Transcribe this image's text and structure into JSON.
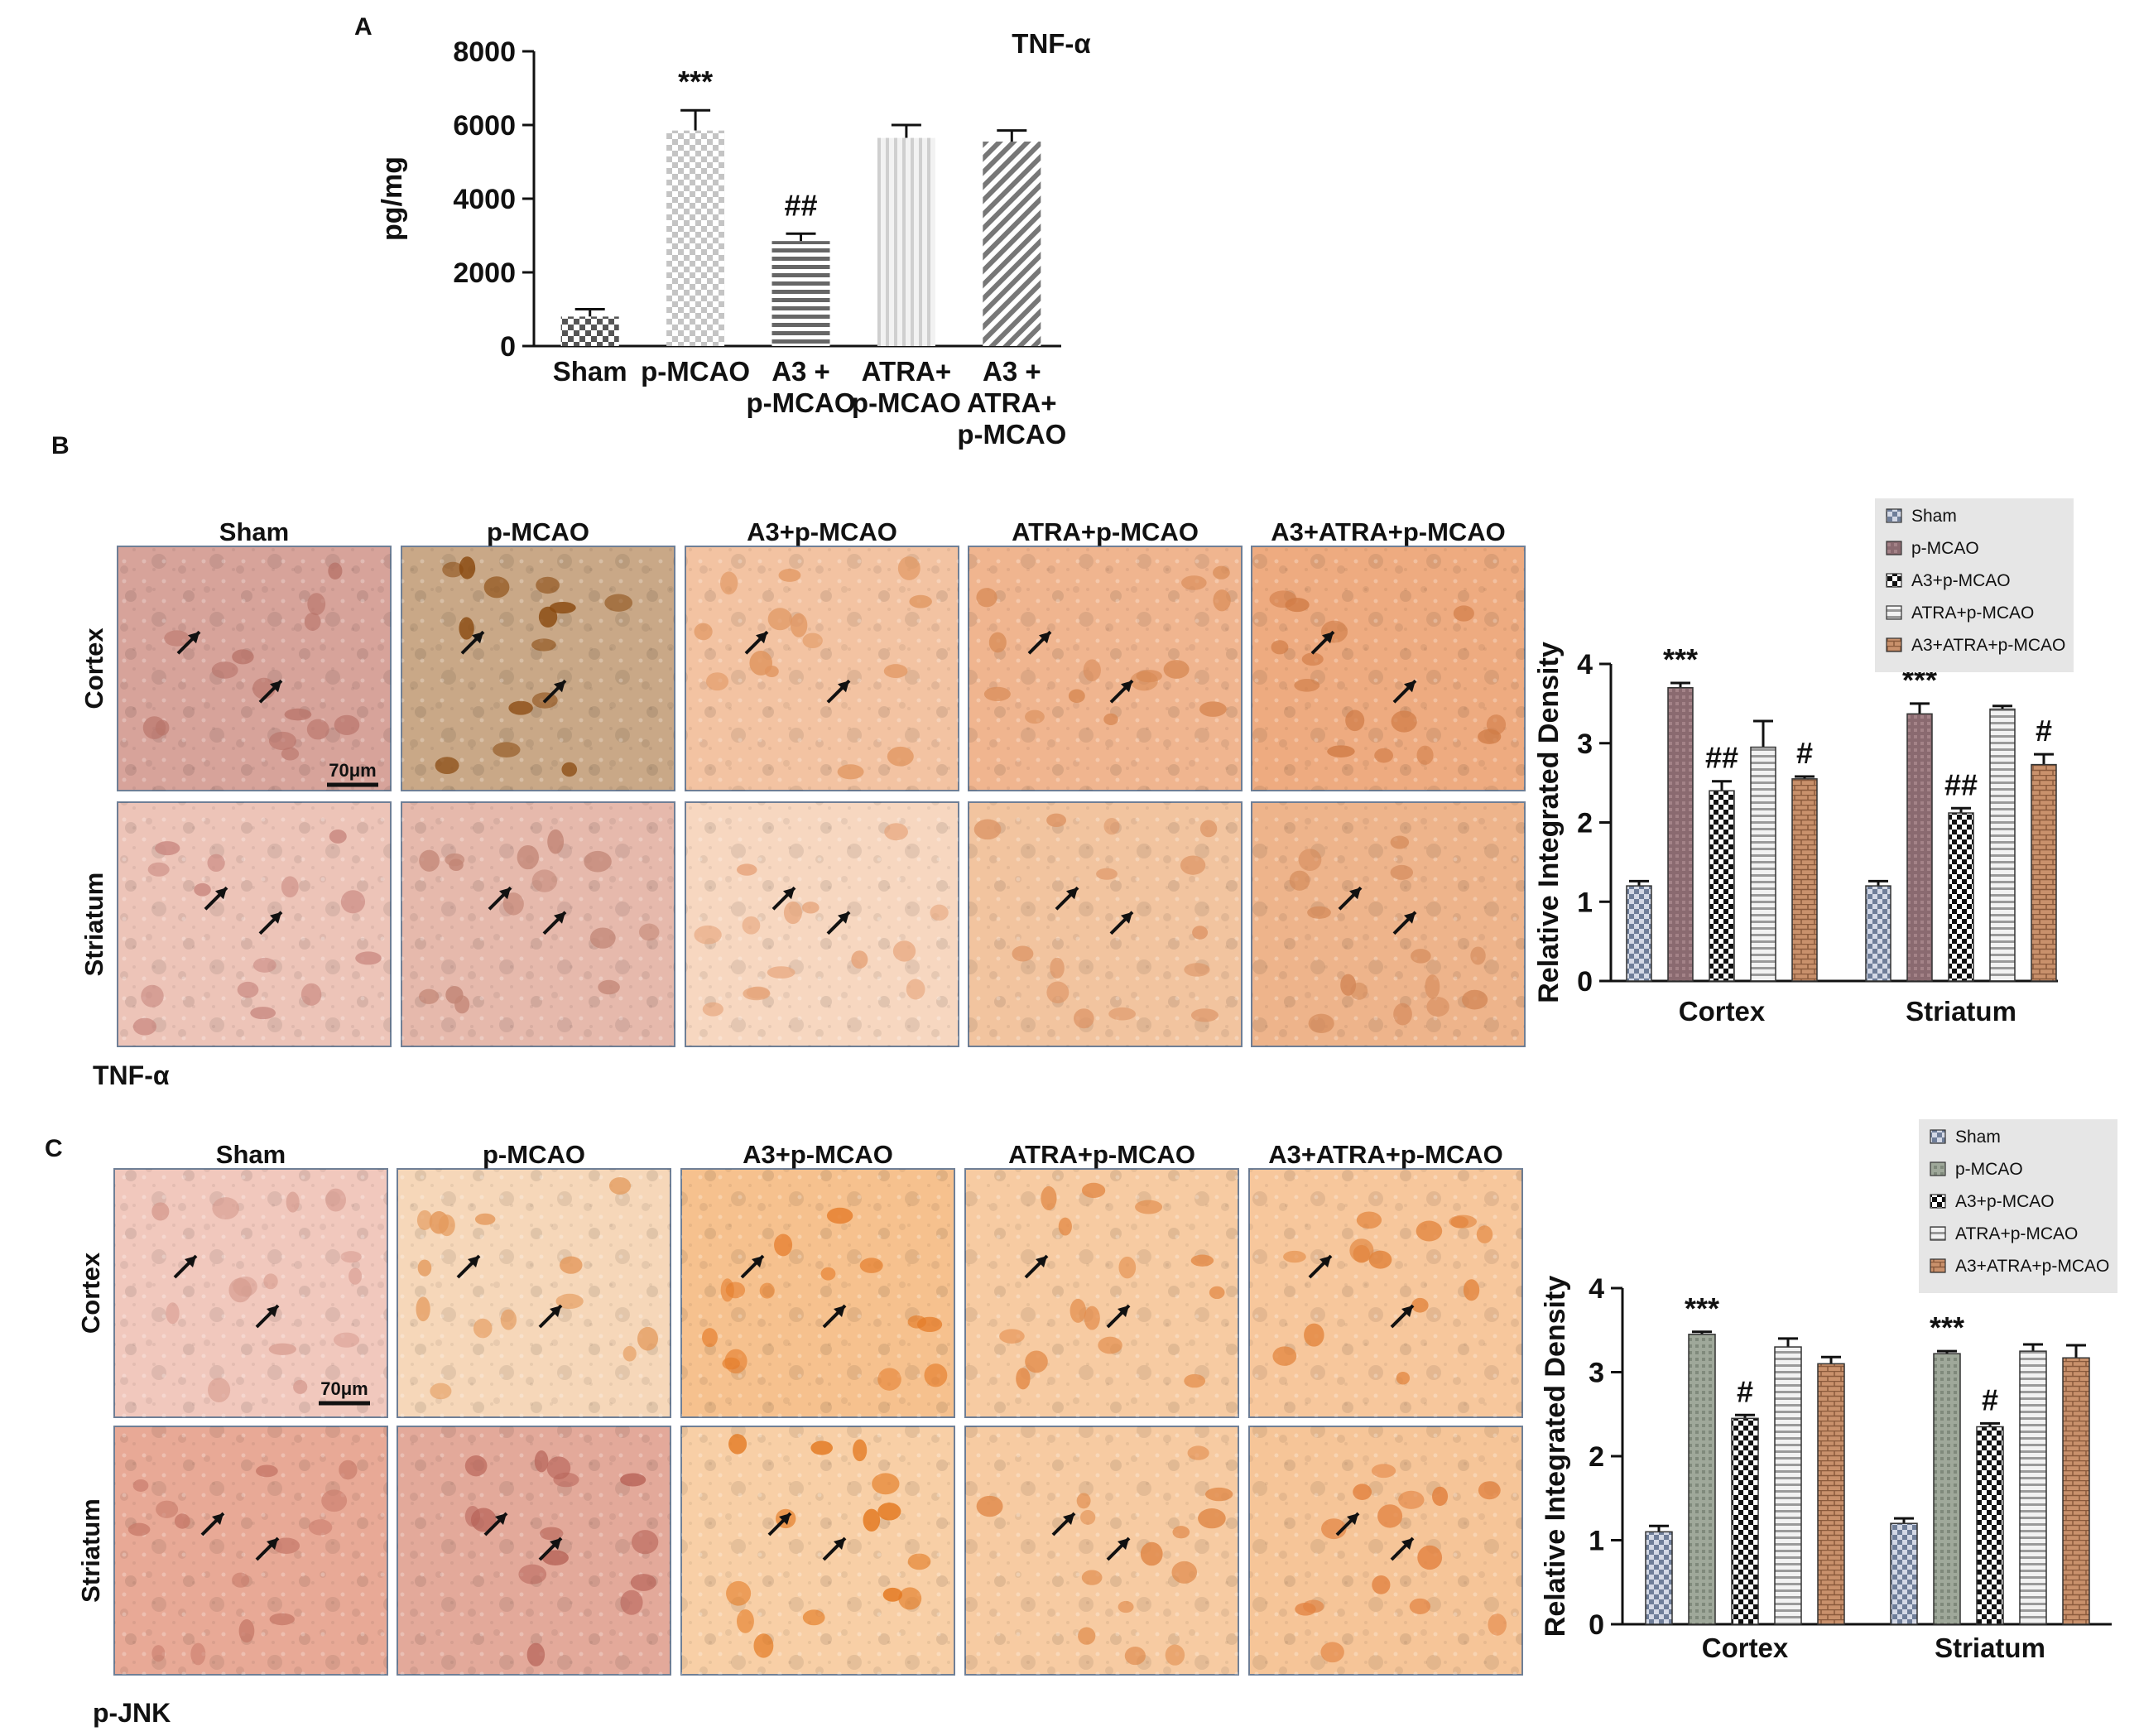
{
  "figure": {
    "panel_a_letter": "A",
    "panel_b_letter": "B",
    "panel_c_letter": "C",
    "panel_b_marker": "TNF-α",
    "panel_c_marker": "p-JNK",
    "scale_bar_b": "70μm",
    "scale_bar_c": "70μm",
    "micrograph_columns": [
      "Sham",
      "p-MCAO",
      "A3+p-MCAO",
      "ATRA+p-MCAO",
      "A3+ATRA+p-MCAO"
    ],
    "micrograph_rows": [
      "Cortex",
      "Striatum"
    ]
  },
  "colors": {
    "axis": "#111111",
    "stain_light": "#f3c9a6",
    "stain_mid": "#e8a070",
    "stain_dark": "#b8641c",
    "stain_pink": "#e9b0a6",
    "legend_bg": "#e6e6e6",
    "frame": "#6f7f96"
  },
  "chart_data": [
    {
      "id": "A",
      "type": "bar",
      "title": "TNF-α",
      "ylabel": "pg/mg",
      "xlabel": "",
      "ylim": [
        0,
        8000
      ],
      "yticks": [
        "0",
        "2000",
        "4000",
        "6000",
        "8000"
      ],
      "categories": [
        [
          "Sham"
        ],
        [
          "p-MCAO"
        ],
        [
          "A3 +",
          "p-MCAO"
        ],
        [
          "ATRA+",
          "p-MCAO"
        ],
        [
          "A3 +",
          "ATRA+",
          "p-MCAO"
        ]
      ],
      "values": [
        800,
        5850,
        2850,
        5650,
        5550
      ],
      "errors": [
        200,
        550,
        200,
        350,
        300
      ],
      "significance": [
        "",
        "***",
        "##",
        "",
        ""
      ],
      "patterns": [
        "checker",
        "checker-light",
        "hlines",
        "vlines",
        "diag"
      ]
    },
    {
      "id": "B",
      "type": "bar",
      "title": "",
      "ylabel": "Relative Integrated Density",
      "xlabel": "",
      "ylim": [
        0,
        4
      ],
      "yticks": [
        "0",
        "1",
        "2",
        "3",
        "4"
      ],
      "categories": [
        "Cortex",
        "Striatum"
      ],
      "legend": [
        "Sham",
        "p-MCAO",
        "A3+p-MCAO",
        "ATRA+p-MCAO",
        "A3+ATRA+p-MCAO"
      ],
      "legend_position": "top-right",
      "series": [
        {
          "name": "Sham",
          "values": [
            1.2,
            1.2
          ],
          "errors": [
            0.06,
            0.06
          ],
          "significance": [
            "",
            ""
          ]
        },
        {
          "name": "p-MCAO",
          "values": [
            3.7,
            3.37
          ],
          "errors": [
            0.06,
            0.13
          ],
          "significance": [
            "***",
            "***"
          ]
        },
        {
          "name": "A3+p-MCAO",
          "values": [
            2.4,
            2.12
          ],
          "errors": [
            0.12,
            0.06
          ],
          "significance": [
            "##",
            "##"
          ]
        },
        {
          "name": "ATRA+p-MCAO",
          "values": [
            2.95,
            3.43
          ],
          "errors": [
            0.33,
            0.04
          ],
          "significance": [
            "",
            ""
          ]
        },
        {
          "name": "A3+ATRA+p-MCAO",
          "values": [
            2.55,
            2.73
          ],
          "errors": [
            0.03,
            0.13
          ],
          "significance": [
            "#",
            "#"
          ]
        }
      ]
    },
    {
      "id": "C",
      "type": "bar",
      "title": "",
      "ylabel": "Relative Integrated Density",
      "xlabel": "",
      "ylim": [
        0,
        4
      ],
      "yticks": [
        "0",
        "1",
        "2",
        "3",
        "4"
      ],
      "categories": [
        "Cortex",
        "Striatum"
      ],
      "legend": [
        "Sham",
        "p-MCAO",
        "A3+p-MCAO",
        "ATRA+p-MCAO",
        "A3+ATRA+p-MCAO"
      ],
      "legend_position": "top-right",
      "series": [
        {
          "name": "Sham",
          "values": [
            1.1,
            1.2
          ],
          "errors": [
            0.07,
            0.06
          ],
          "significance": [
            "",
            ""
          ]
        },
        {
          "name": "p-MCAO",
          "values": [
            3.45,
            3.22
          ],
          "errors": [
            0.03,
            0.03
          ],
          "significance": [
            "***",
            "***"
          ]
        },
        {
          "name": "A3+p-MCAO",
          "values": [
            2.45,
            2.35
          ],
          "errors": [
            0.04,
            0.04
          ],
          "significance": [
            "#",
            "#"
          ]
        },
        {
          "name": "ATRA+p-MCAO",
          "values": [
            3.3,
            3.25
          ],
          "errors": [
            0.1,
            0.08
          ],
          "significance": [
            "",
            ""
          ]
        },
        {
          "name": "A3+ATRA+p-MCAO",
          "values": [
            3.1,
            3.17
          ],
          "errors": [
            0.08,
            0.15
          ],
          "significance": [
            "",
            ""
          ]
        }
      ]
    }
  ]
}
